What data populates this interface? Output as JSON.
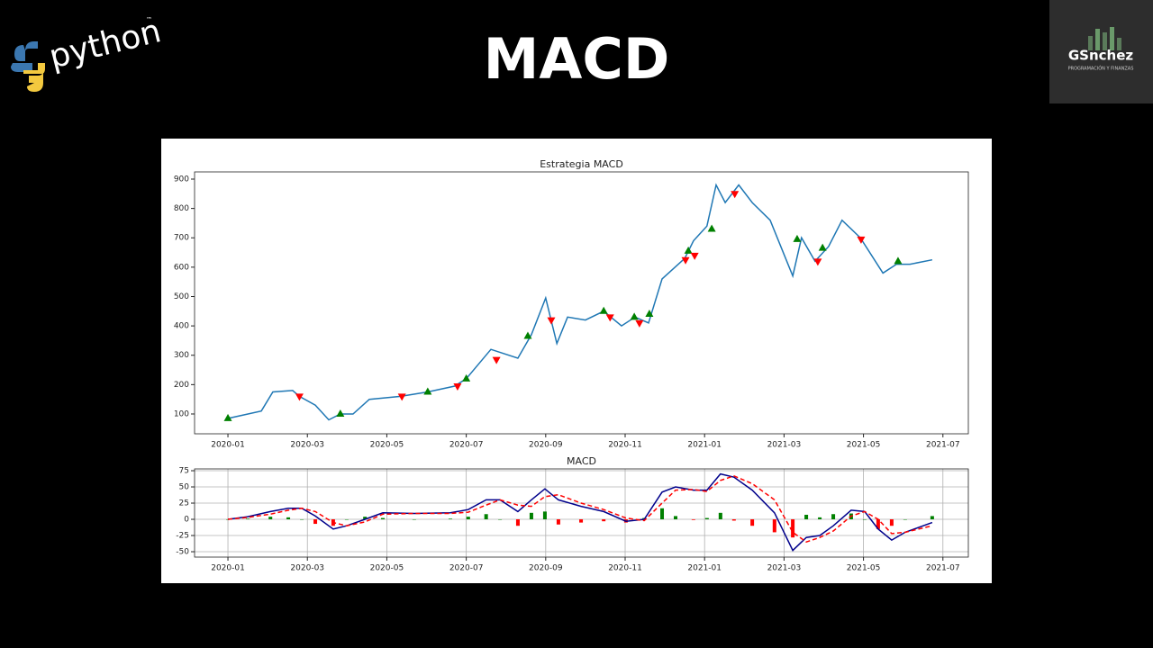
{
  "header": {
    "title": "MACD",
    "python_logo": "python",
    "trademark": "™",
    "brand": "GSnchez",
    "brand_tagline": "PROGRAMACIÓN Y FINANZAS"
  },
  "chart_data": [
    {
      "type": "line",
      "title": "Estrategia MACD",
      "grid": false,
      "xlim": [
        -0.84,
        18.64
      ],
      "ylim": [
        32.5,
        924.5
      ],
      "xticks": [
        {
          "value": 0,
          "label": "2020-01"
        },
        {
          "value": 2,
          "label": "2020-03"
        },
        {
          "value": 4,
          "label": "2020-05"
        },
        {
          "value": 6,
          "label": "2020-07"
        },
        {
          "value": 8,
          "label": "2020-09"
        },
        {
          "value": 10,
          "label": "2020-11"
        },
        {
          "value": 12,
          "label": "2021-01"
        },
        {
          "value": 14,
          "label": "2021-03"
        },
        {
          "value": 16,
          "label": "2021-05"
        },
        {
          "value": 18,
          "label": "2021-07"
        }
      ],
      "yticks": [
        100,
        200,
        300,
        400,
        500,
        600,
        700,
        800,
        900
      ],
      "series": [
        {
          "kind": "line",
          "color": "#1f77b4",
          "x": [
            0,
            0.84,
            1.13,
            1.63,
            1.8,
            2.2,
            2.54,
            2.83,
            3.15,
            3.56,
            4.35,
            5.03,
            5.71,
            6.0,
            6.62,
            7.3,
            7.64,
            8.0,
            8.28,
            8.55,
            9.0,
            9.46,
            9.91,
            10.25,
            10.59,
            10.93,
            11.5,
            11.72,
            12.06,
            12.29,
            12.52,
            12.86,
            13.2,
            13.65,
            13.95,
            14.22,
            14.44,
            14.78,
            15.12,
            15.46,
            15.92,
            16.49,
            16.83,
            17.17,
            17.73
          ],
          "values": [
            85,
            110,
            175,
            180,
            160,
            130,
            80,
            100,
            100,
            150,
            160,
            175,
            195,
            220,
            320,
            290,
            370,
            495,
            340,
            430,
            420,
            450,
            400,
            430,
            410,
            560,
            630,
            690,
            740,
            880,
            820,
            880,
            820,
            760,
            660,
            570,
            700,
            620,
            670,
            760,
            700,
            580,
            610,
            610,
            625
          ]
        },
        {
          "kind": "marker-up",
          "color": "green",
          "x": [
            0,
            2.83,
            5.03,
            6.0,
            7.55,
            9.46,
            10.23,
            10.61,
            11.59,
            12.18,
            14.33,
            14.97,
            16.87
          ],
          "values": [
            85,
            100,
            175,
            220,
            365,
            450,
            430,
            440,
            655,
            730,
            695,
            665,
            620
          ]
        },
        {
          "kind": "marker-down",
          "color": "red",
          "x": [
            1.8,
            4.38,
            5.78,
            6.76,
            8.14,
            9.62,
            10.36,
            11.52,
            11.75,
            12.76,
            14.85,
            15.94
          ],
          "values": [
            160,
            160,
            195,
            285,
            420,
            430,
            410,
            625,
            640,
            850,
            620,
            695
          ]
        }
      ]
    },
    {
      "type": "line",
      "title": "MACD",
      "grid": true,
      "xlim": [
        -0.84,
        18.64
      ],
      "ylim": [
        -58.3,
        77.8
      ],
      "xticks": [
        {
          "value": 0,
          "label": "2020-01"
        },
        {
          "value": 2,
          "label": "2020-03"
        },
        {
          "value": 4,
          "label": "2020-05"
        },
        {
          "value": 6,
          "label": "2020-07"
        },
        {
          "value": 8,
          "label": "2020-09"
        },
        {
          "value": 10,
          "label": "2020-11"
        },
        {
          "value": 12,
          "label": "2021-01"
        },
        {
          "value": 14,
          "label": "2021-03"
        },
        {
          "value": 16,
          "label": "2021-05"
        },
        {
          "value": 18,
          "label": "2021-07"
        }
      ],
      "yticks": [
        -50,
        -25,
        0,
        25,
        50,
        75
      ],
      "series": [
        {
          "kind": "bar",
          "color": "green",
          "negative_color": "red",
          "x": [
            0,
            0.5,
            1.07,
            1.52,
            1.86,
            2.2,
            2.65,
            2.99,
            3.45,
            3.9,
            4.69,
            5.6,
            6.05,
            6.5,
            6.85,
            7.3,
            7.64,
            7.98,
            8.32,
            8.89,
            9.46,
            10.02,
            10.48,
            10.93,
            11.27,
            11.72,
            12.06,
            12.4,
            12.74,
            13.2,
            13.76,
            14.22,
            14.56,
            14.9,
            15.24,
            15.69,
            16.03,
            16.37,
            16.71,
            17.05,
            17.73
          ],
          "values": [
            0,
            1,
            4,
            3,
            0,
            -7,
            -10,
            0,
            4,
            2,
            0,
            1,
            4,
            8,
            0,
            -10,
            10,
            12,
            -8,
            -5,
            -3,
            -5,
            2,
            17,
            5,
            -1,
            2,
            10,
            -2,
            -10,
            -20,
            -28,
            7,
            3,
            8,
            9,
            0,
            -15,
            -10,
            0,
            5
          ]
        },
        {
          "kind": "line",
          "color": "#00008b",
          "x": [
            0,
            0.5,
            1.07,
            1.52,
            1.86,
            2.2,
            2.65,
            2.99,
            3.45,
            3.9,
            4.69,
            5.6,
            6.05,
            6.5,
            6.85,
            7.3,
            7.64,
            7.98,
            8.32,
            8.89,
            9.46,
            10.02,
            10.48,
            10.93,
            11.27,
            11.72,
            12.06,
            12.4,
            12.74,
            13.2,
            13.76,
            14.22,
            14.56,
            14.9,
            15.24,
            15.69,
            16.03,
            16.37,
            16.71,
            17.05,
            17.73
          ],
          "values": [
            0,
            4,
            12,
            17,
            17,
            5,
            -15,
            -10,
            0,
            10,
            9,
            10,
            15,
            30,
            30,
            12,
            30,
            47,
            30,
            20,
            12,
            -3,
            0,
            42,
            50,
            45,
            45,
            70,
            65,
            45,
            10,
            -48,
            -28,
            -25,
            -10,
            14,
            12,
            -15,
            -32,
            -20,
            -5
          ]
        },
        {
          "kind": "line",
          "dashed": true,
          "color": "red",
          "x": [
            0,
            0.5,
            1.07,
            1.52,
            1.86,
            2.2,
            2.65,
            2.99,
            3.45,
            3.9,
            4.69,
            5.6,
            6.05,
            6.5,
            6.85,
            7.3,
            7.64,
            7.98,
            8.32,
            8.89,
            9.46,
            10.02,
            10.48,
            10.93,
            11.27,
            11.72,
            12.06,
            12.4,
            12.74,
            13.2,
            13.76,
            14.22,
            14.56,
            14.9,
            15.24,
            15.69,
            16.03,
            16.37,
            16.71,
            17.05,
            17.73
          ],
          "values": [
            0,
            3,
            8,
            14,
            17,
            12,
            -5,
            -10,
            -4,
            8,
            9,
            9,
            11,
            22,
            30,
            22,
            20,
            35,
            38,
            25,
            15,
            2,
            -2,
            25,
            45,
            46,
            43,
            60,
            67,
            55,
            30,
            -20,
            -35,
            -28,
            -18,
            5,
            12,
            0,
            -22,
            -20,
            -10
          ]
        }
      ]
    }
  ]
}
